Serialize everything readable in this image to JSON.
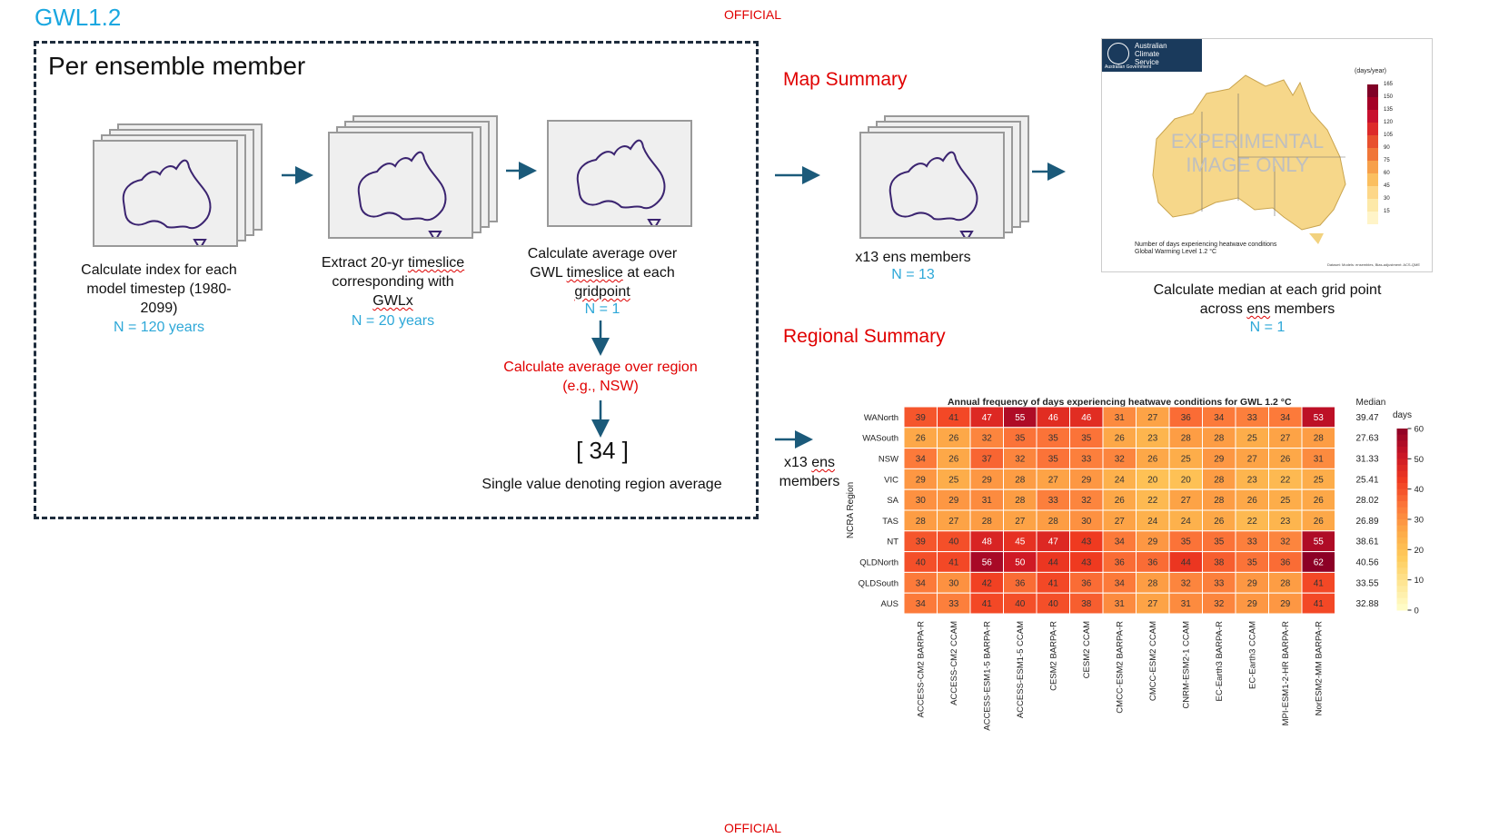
{
  "official_top": "OFFICIAL",
  "official_bottom": "OFFICIAL",
  "gwl_label": "GWL1.2",
  "per_member_title": "Per ensemble member",
  "step1": {
    "line1": "Calculate index for each",
    "line2": "model timestep (1980-",
    "line3": "2099)",
    "n": "N = 120 years"
  },
  "step2": {
    "line1": "Extract 20-yr ",
    "line1_sq": "timeslice",
    "line2": "corresponding with",
    "line3_sq": "GWLx",
    "n": "N = 20 years"
  },
  "step3": {
    "line1": "Calculate average over",
    "line2a": "GWL ",
    "line2_sq": "timeslice",
    "line2b": " at each",
    "line3_sq": "gridpoint",
    "n": "N = 1"
  },
  "region_avg": {
    "line1": "Calculate average over region",
    "line2": "(e.g., NSW)"
  },
  "single_value": {
    "value": "[ 34 ]",
    "caption": "Single value denoting region average"
  },
  "map_summary": {
    "heading": "Map Summary",
    "ens_label": "x13 ens members",
    "ens_n": "N = 13",
    "median_line1": "Calculate median at each grid point",
    "median_line2a": "across ",
    "median_line2_sq": "ens",
    "median_line2b": " members",
    "median_n": "N = 1"
  },
  "regional_summary": {
    "heading": "Regional Summary",
    "ens_line1a": "x13 ",
    "ens_line1_sq": "ens",
    "ens_line2": "members"
  },
  "map_thumb": {
    "agency_line1": "Australian",
    "agency_line2": "Climate",
    "agency_line3": "Service",
    "gov_label": "Australian Government",
    "watermark_line1": "EXPERIMENTAL",
    "watermark_line2": "IMAGE ONLY",
    "unit": "(days/year)",
    "scale": [
      "165",
      "150",
      "135",
      "120",
      "105",
      "90",
      "75",
      "60",
      "45",
      "30",
      "15"
    ],
    "caption1": "Number of days experiencing heatwave conditions",
    "caption2": "Global Warming Level 1.2 °C",
    "source": "Dataset: Models: ensembles, Bias-adjustment: ACS-QME"
  },
  "colors": {
    "red": "#e00000",
    "blue": "#2ea8d8",
    "arrow": "#1b5a7a"
  },
  "chart_data": {
    "type": "heatmap",
    "title": "Annual frequency of days experiencing heatwave conditions for GWL 1.2 °C",
    "ylabel": "NCRA Region",
    "median_header": "Median",
    "colorbar_label": "days",
    "colorbar_ticks": [
      0,
      10,
      20,
      30,
      40,
      50,
      60
    ],
    "vmin": 0,
    "vmax": 60,
    "rows": [
      "WANorth",
      "WASouth",
      "NSW",
      "VIC",
      "SA",
      "TAS",
      "NT",
      "QLDNorth",
      "QLDSouth",
      "AUS"
    ],
    "columns": [
      "ACCESS-CM2 BARPA-R",
      "ACCESS-CM2 CCAM",
      "ACCESS-ESM1-5 BARPA-R",
      "ACCESS-ESM1-5 CCAM",
      "CESM2 BARPA-R",
      "CESM2 CCAM",
      "CMCC-ESM2 BARPA-R",
      "CMCC-ESM2 CCAM",
      "CNRM-ESM2-1 CCAM",
      "EC-Earth3 BARPA-R",
      "EC-Earth3 CCAM",
      "MPI-ESM1-2-HR BARPA-R",
      "NorESM2-MM BARPA-R"
    ],
    "values": [
      [
        39,
        41,
        47,
        55,
        46,
        46,
        31,
        27,
        36,
        34,
        33,
        34,
        53
      ],
      [
        26,
        26,
        32,
        35,
        35,
        35,
        26,
        23,
        28,
        28,
        25,
        27,
        28
      ],
      [
        34,
        26,
        37,
        32,
        35,
        33,
        32,
        26,
        25,
        29,
        27,
        26,
        31
      ],
      [
        29,
        25,
        29,
        28,
        27,
        29,
        24,
        20,
        20,
        28,
        23,
        22,
        25
      ],
      [
        30,
        29,
        31,
        28,
        33,
        32,
        26,
        22,
        27,
        28,
        26,
        25,
        26
      ],
      [
        28,
        27,
        28,
        27,
        28,
        30,
        27,
        24,
        24,
        26,
        22,
        23,
        26
      ],
      [
        39,
        40,
        48,
        45,
        47,
        43,
        34,
        29,
        35,
        35,
        33,
        32,
        55
      ],
      [
        40,
        41,
        56,
        50,
        44,
        43,
        36,
        36,
        44,
        38,
        35,
        36,
        62
      ],
      [
        34,
        30,
        42,
        36,
        41,
        36,
        34,
        28,
        32,
        33,
        29,
        28,
        41
      ],
      [
        34,
        33,
        41,
        40,
        40,
        38,
        31,
        27,
        31,
        32,
        29,
        29,
        41
      ]
    ],
    "medians": [
      "39.47",
      "27.63",
      "31.33",
      "25.41",
      "28.02",
      "26.89",
      "38.61",
      "40.56",
      "33.55",
      "32.88"
    ]
  }
}
